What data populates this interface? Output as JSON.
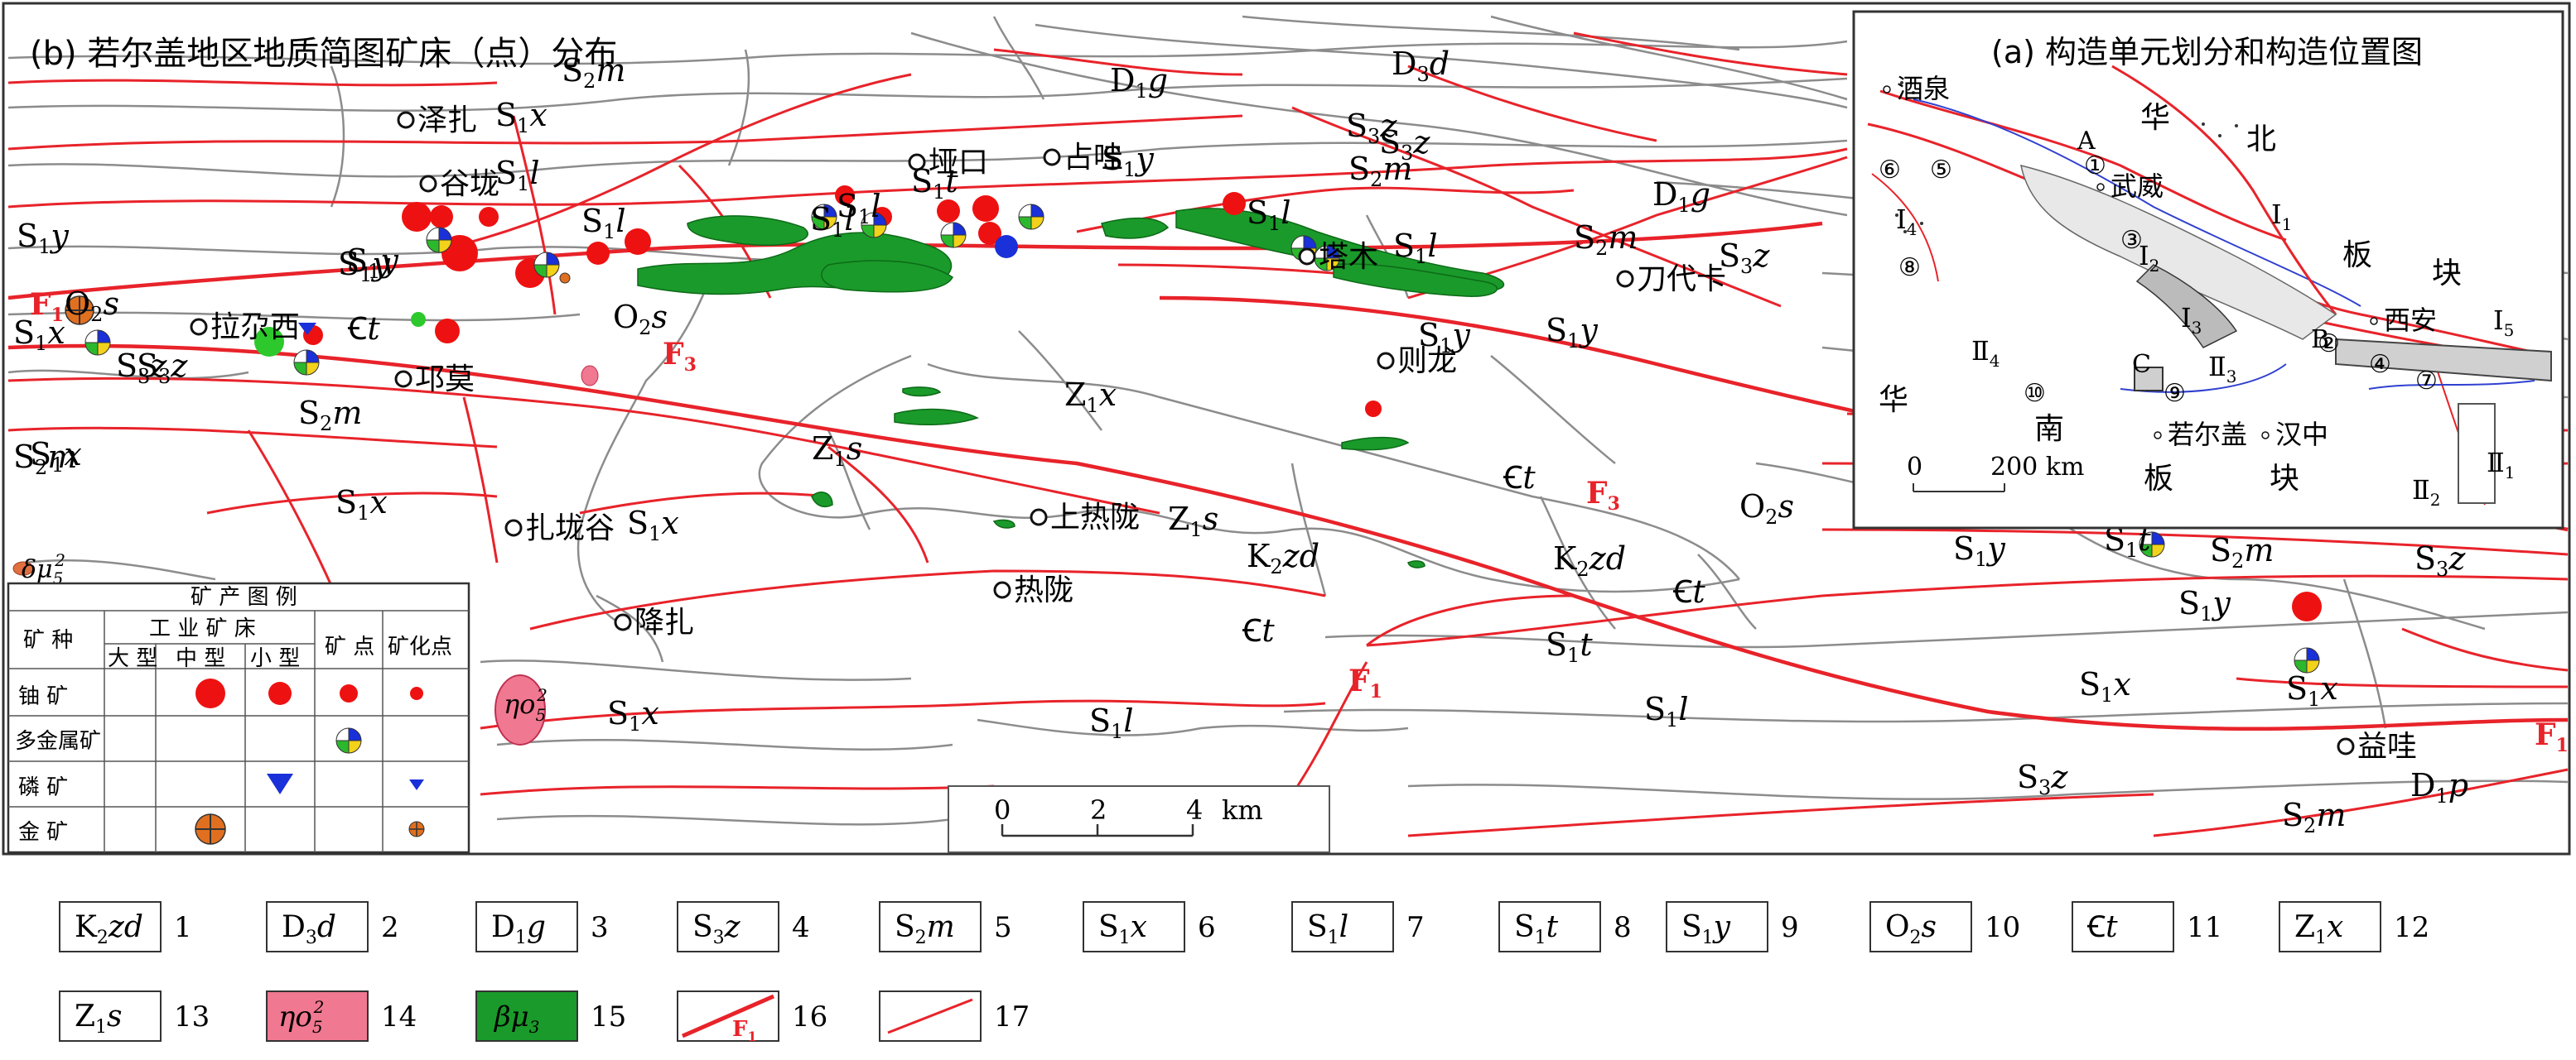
{
  "main_map": {
    "title": "(b) 若尔盖地区地质简图矿床（点）分布",
    "places": [
      {
        "id": "zezha",
        "name": "泽扎"
      },
      {
        "id": "gulong",
        "name": "谷垅"
      },
      {
        "id": "yakou",
        "name": "垭口"
      },
      {
        "id": "zhanwa",
        "name": "占哇"
      },
      {
        "id": "tamu",
        "name": "塔木"
      },
      {
        "id": "daodaika",
        "name": "刀代卡"
      },
      {
        "id": "lazhaxi",
        "name": "拉尕西"
      },
      {
        "id": "qiongmo",
        "name": "邛莫"
      },
      {
        "id": "zelong",
        "name": "则龙"
      },
      {
        "id": "zhalonggu",
        "name": "扎垅谷"
      },
      {
        "id": "shangrelong",
        "name": "上热陇"
      },
      {
        "id": "relong",
        "name": "热陇"
      },
      {
        "id": "jiangzha",
        "name": "降扎"
      },
      {
        "id": "yiwa",
        "name": "益哇"
      }
    ],
    "faults": [
      {
        "id": "F1a",
        "label": "F",
        "sub": "1"
      },
      {
        "id": "F3a",
        "label": "F",
        "sub": "3"
      },
      {
        "id": "F3b",
        "label": "F",
        "sub": "3"
      },
      {
        "id": "F1b",
        "label": "F",
        "sub": "1"
      },
      {
        "id": "F1c",
        "label": "F",
        "sub": "1"
      }
    ],
    "unit_labels": [
      {
        "id": "u1",
        "b": "S",
        "s": "2",
        "i": "m"
      },
      {
        "id": "u2",
        "b": "S",
        "s": "1",
        "i": "x"
      },
      {
        "id": "u3",
        "b": "D",
        "s": "3",
        "i": "d"
      },
      {
        "id": "u4",
        "b": "D",
        "s": "1",
        "i": "g"
      },
      {
        "id": "u5",
        "b": "S",
        "s": "1",
        "i": "l"
      },
      {
        "id": "u6",
        "b": "S",
        "s": "1",
        "i": "y"
      },
      {
        "id": "u7",
        "b": "S",
        "s": "3",
        "i": "z"
      },
      {
        "id": "u8",
        "b": "S",
        "s": "2",
        "i": "m"
      },
      {
        "id": "u9",
        "b": "S",
        "s": "3",
        "i": "z"
      },
      {
        "id": "u10",
        "b": "S",
        "s": "1",
        "i": "l"
      },
      {
        "id": "u11",
        "b": "S",
        "s": "1",
        "i": "t"
      },
      {
        "id": "u12",
        "b": "S",
        "s": "1",
        "i": "y"
      },
      {
        "id": "u13",
        "b": "O",
        "s": "2",
        "i": "s"
      },
      {
        "id": "u14",
        "b": "S",
        "s": "1",
        "i": "x"
      },
      {
        "id": "u15",
        "b": "S",
        "s": "3",
        "i": "z"
      },
      {
        "id": "u16",
        "b": "Ꞓ",
        "s": "",
        "i": "t"
      },
      {
        "id": "u17",
        "b": "O",
        "s": "2",
        "i": "s"
      },
      {
        "id": "u18",
        "b": "S",
        "s": "1",
        "i": "y"
      },
      {
        "id": "u19",
        "b": "S",
        "s": "2",
        "i": "m"
      },
      {
        "id": "u20",
        "b": "S",
        "s": "1",
        "i": "x"
      },
      {
        "id": "u21",
        "b": "S",
        "s": "1",
        "i": "x"
      },
      {
        "id": "u22",
        "b": "Z",
        "s": "1",
        "i": "x"
      },
      {
        "id": "u23",
        "b": "Z",
        "s": "1",
        "i": "s"
      },
      {
        "id": "u24",
        "b": "Z",
        "s": "1",
        "i": "s"
      },
      {
        "id": "u25",
        "b": "K",
        "s": "2",
        "i": "zd"
      },
      {
        "id": "u26",
        "b": "K",
        "s": "2",
        "i": "zd"
      },
      {
        "id": "u27",
        "b": "Ꞓ",
        "s": "",
        "i": "t"
      },
      {
        "id": "u28",
        "b": "O",
        "s": "2",
        "i": "s"
      },
      {
        "id": "u29",
        "b": "S",
        "s": "1",
        "i": "x"
      },
      {
        "id": "u30",
        "b": "Ꞓ",
        "s": "",
        "i": "t"
      },
      {
        "id": "u31",
        "b": "Ꞓ",
        "s": "",
        "i": "t"
      },
      {
        "id": "u32",
        "b": "S",
        "s": "1",
        "i": "t"
      },
      {
        "id": "u33",
        "b": "S",
        "s": "1",
        "i": "l"
      },
      {
        "id": "u34",
        "b": "S",
        "s": "1",
        "i": "l"
      },
      {
        "id": "u35",
        "b": "S",
        "s": "1",
        "i": "x"
      },
      {
        "id": "u36",
        "b": "S",
        "s": "1",
        "i": "y"
      },
      {
        "id": "u37",
        "b": "S",
        "s": "1",
        "i": "t"
      },
      {
        "id": "u38",
        "b": "S",
        "s": "2",
        "i": "m"
      },
      {
        "id": "u39",
        "b": "S",
        "s": "3",
        "i": "z"
      },
      {
        "id": "u40",
        "b": "S",
        "s": "1",
        "i": "y"
      },
      {
        "id": "u41",
        "b": "S",
        "s": "1",
        "i": "x"
      },
      {
        "id": "u42",
        "b": "S",
        "s": "1",
        "i": "x"
      },
      {
        "id": "u43",
        "b": "S",
        "s": "3",
        "i": "z"
      },
      {
        "id": "u44",
        "b": "S",
        "s": "2",
        "i": "m"
      },
      {
        "id": "u45",
        "b": "D",
        "s": "1",
        "i": "p"
      },
      {
        "id": "u46",
        "b": "S",
        "s": "1",
        "i": "l"
      },
      {
        "id": "u47",
        "b": "S",
        "s": "1",
        "i": "y"
      },
      {
        "id": "u48",
        "b": "S",
        "s": "1",
        "i": "l"
      },
      {
        "id": "u49",
        "b": "S",
        "s": "1",
        "i": "l"
      },
      {
        "id": "u50",
        "b": "S",
        "s": "2",
        "i": "m"
      },
      {
        "id": "u51",
        "b": "S",
        "s": "3",
        "i": "z"
      },
      {
        "id": "u52",
        "b": "S",
        "s": "1",
        "i": "y"
      },
      {
        "id": "u53",
        "b": "D",
        "s": "1",
        "i": "g"
      },
      {
        "id": "u54",
        "b": "S",
        "s": "2",
        "i": "m"
      },
      {
        "id": "u55",
        "b": "S",
        "s": "3",
        "i": "z"
      },
      {
        "id": "u56",
        "b": "S",
        "s": "1",
        "i": "y"
      },
      {
        "id": "u57",
        "b": "S",
        "s": "1",
        "i": "l"
      }
    ],
    "scale_bar": {
      "ticks": [
        "0",
        "2",
        "4"
      ],
      "unit": "km"
    }
  },
  "inset_map": {
    "title": "(a) 构造单元划分和构造位置图",
    "places": [
      {
        "id": "jiuquan",
        "name": "酒泉"
      },
      {
        "id": "wuwei",
        "name": "武威"
      },
      {
        "id": "xian",
        "name": "西安"
      },
      {
        "id": "ruoergai",
        "name": "若尔盖"
      },
      {
        "id": "hanzhong",
        "name": "汉中"
      }
    ],
    "region_labels": [
      {
        "id": "hua1",
        "name": "华"
      },
      {
        "id": "bei",
        "name": "北"
      },
      {
        "id": "ban1",
        "name": "板"
      },
      {
        "id": "kuai1",
        "name": "块"
      },
      {
        "id": "hua2",
        "name": "华"
      },
      {
        "id": "nan",
        "name": "南"
      },
      {
        "id": "ban2",
        "name": "板"
      },
      {
        "id": "kuai2",
        "name": "块"
      }
    ],
    "numbers": [
      "①",
      "②",
      "③",
      "④",
      "⑤",
      "⑥",
      "⑦",
      "⑧",
      "⑨",
      "⑩"
    ],
    "roman_labels": [
      {
        "id": "r1",
        "b": "Ⅰ",
        "s": "1"
      },
      {
        "id": "r2",
        "b": "Ⅰ",
        "s": "2"
      },
      {
        "id": "r3",
        "b": "Ⅰ",
        "s": "3"
      },
      {
        "id": "r4",
        "b": "Ⅰ",
        "s": "4"
      },
      {
        "id": "r5",
        "b": "Ⅰ",
        "s": "5"
      },
      {
        "id": "r6",
        "b": "Ⅱ",
        "s": "1"
      },
      {
        "id": "r7",
        "b": "Ⅱ",
        "s": "2"
      },
      {
        "id": "r8",
        "b": "Ⅱ",
        "s": "3"
      },
      {
        "id": "r9",
        "b": "Ⅱ",
        "s": "4"
      }
    ],
    "letters": [
      "A",
      "B",
      "C"
    ],
    "scale": {
      "start": "0",
      "end": "200 km"
    }
  },
  "mineral_legend": {
    "title": "矿 产 图 例",
    "header_mineral": "矿 种",
    "header_industrial": "工 业 矿 床",
    "header_large": "大 型",
    "header_medium": "中 型",
    "header_small": "小 型",
    "header_occurrence": "矿 点",
    "header_mineralization": "矿化点",
    "rows": [
      {
        "name": "铀 矿"
      },
      {
        "name": "多金属矿"
      },
      {
        "name": "磷 矿"
      },
      {
        "name": "金 矿"
      }
    ]
  },
  "strata_legend": [
    {
      "num": "1",
      "b": "K",
      "s": "2",
      "i": "zd"
    },
    {
      "num": "2",
      "b": "D",
      "s": "3",
      "i": "d"
    },
    {
      "num": "3",
      "b": "D",
      "s": "1",
      "i": "g"
    },
    {
      "num": "4",
      "b": "S",
      "s": "3",
      "i": "z"
    },
    {
      "num": "5",
      "b": "S",
      "s": "2",
      "i": "m"
    },
    {
      "num": "6",
      "b": "S",
      "s": "1",
      "i": "x"
    },
    {
      "num": "7",
      "b": "S",
      "s": "1",
      "i": "l"
    },
    {
      "num": "8",
      "b": "S",
      "s": "1",
      "i": "t"
    },
    {
      "num": "9",
      "b": "S",
      "s": "1",
      "i": "y"
    },
    {
      "num": "10",
      "b": "O",
      "s": "2",
      "i": "s"
    },
    {
      "num": "11",
      "b": "Ꞓ",
      "s": "",
      "i": "t"
    },
    {
      "num": "12",
      "b": "Z",
      "s": "1",
      "i": "x"
    },
    {
      "num": "13",
      "b": "Z",
      "s": "1",
      "i": "s"
    },
    {
      "num": "14",
      "b": "ηo",
      "s": "5",
      "sup": "2"
    },
    {
      "num": "15",
      "b": "βμ",
      "s": "3"
    },
    {
      "num": "16",
      "b": "F",
      "s": "1"
    },
    {
      "num": "17"
    }
  ],
  "colors": {
    "fault_red": "#e8232a",
    "boundary_gray": "#8c8c8c",
    "basalt_green": "#1a9a2a",
    "granite_pink": "#f07890",
    "uranium_red": "#ee1111",
    "phosphorus_blue": "#1a30d8",
    "gold_orange": "#e07020",
    "frame": "#333333"
  }
}
